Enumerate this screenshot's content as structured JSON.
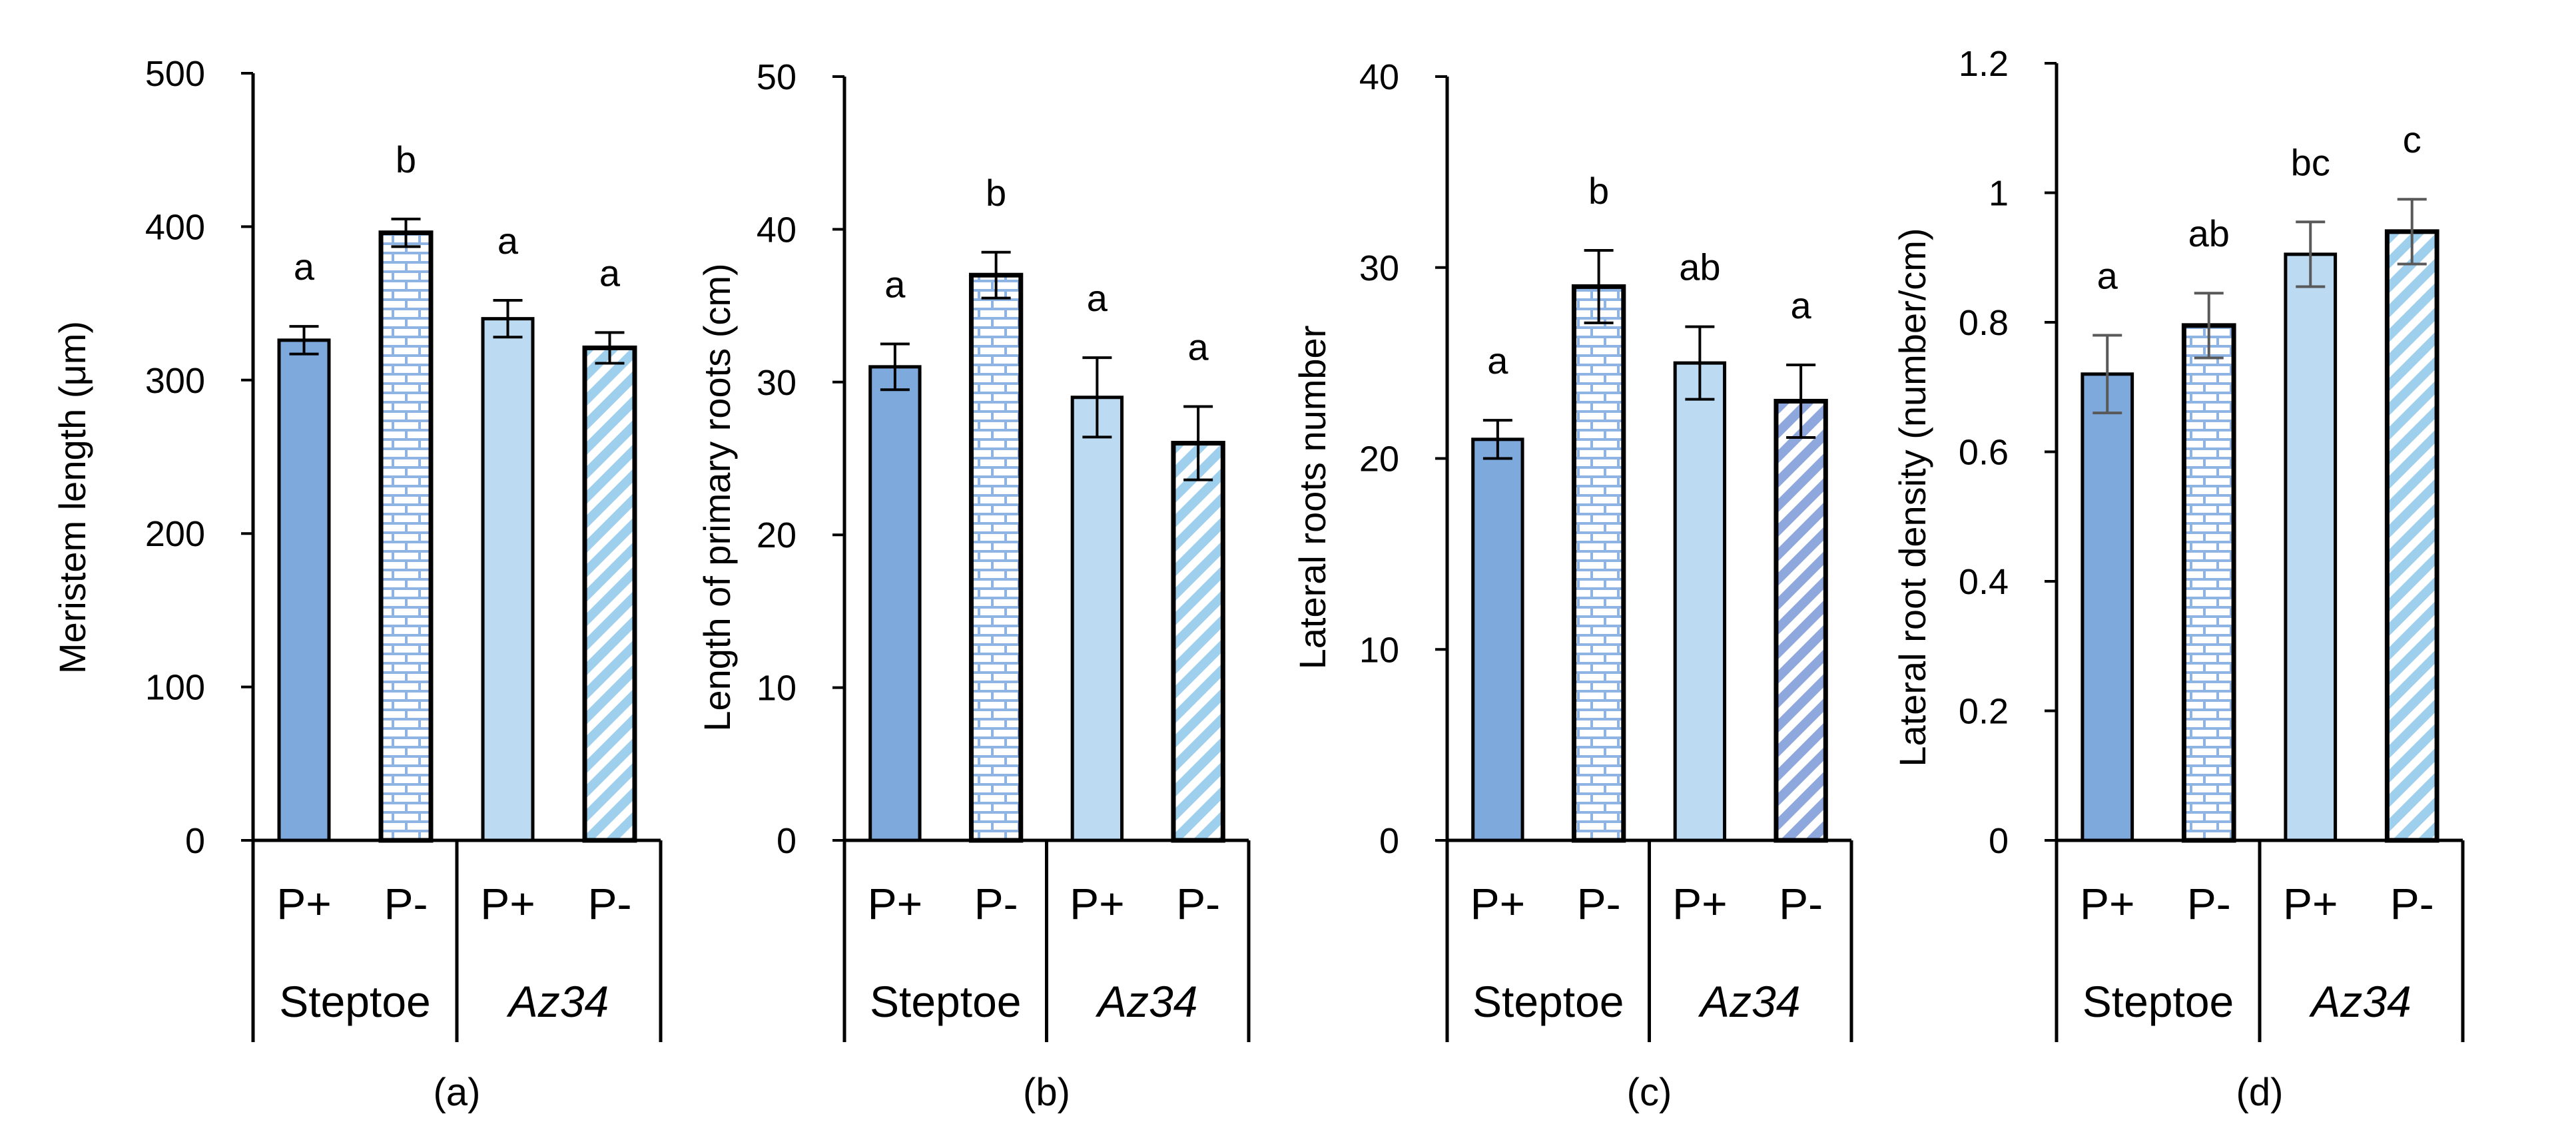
{
  "chart_data": [
    {
      "type": "bar",
      "panel_label": "(a)",
      "ylabel": "Meristem length  (μm)",
      "ylim": [
        0,
        500
      ],
      "yticks": [
        0,
        100,
        200,
        300,
        400,
        500
      ],
      "categories": [
        "P+",
        "P-",
        "P+",
        "P-"
      ],
      "groups": [
        {
          "name": "Steptoe",
          "italic": false
        },
        {
          "name": "Az34",
          "italic": true
        }
      ],
      "values": [
        326,
        396,
        340,
        321
      ],
      "errors": [
        9,
        9,
        12,
        10
      ],
      "letters": [
        "a",
        "b",
        "a",
        "a"
      ]
    },
    {
      "type": "bar",
      "panel_label": "(b)",
      "ylabel": "Length of primary roots (cm)",
      "ylim": [
        0,
        50
      ],
      "yticks": [
        0,
        10,
        20,
        30,
        40,
        50
      ],
      "categories": [
        "P+",
        "P-",
        "P+",
        "P-"
      ],
      "groups": [
        {
          "name": "Steptoe",
          "italic": false
        },
        {
          "name": "Az34",
          "italic": true
        }
      ],
      "values": [
        31,
        37,
        29,
        26
      ],
      "errors": [
        1.5,
        1.5,
        2.6,
        2.4
      ],
      "letters": [
        "a",
        "b",
        "a",
        "a"
      ]
    },
    {
      "type": "bar",
      "panel_label": "(c)",
      "ylabel": "Lateral roots number",
      "ylim": [
        0,
        40
      ],
      "yticks": [
        0,
        10,
        20,
        30,
        40
      ],
      "categories": [
        "P+",
        "P-",
        "P+",
        "P-"
      ],
      "groups": [
        {
          "name": "Steptoe",
          "italic": false
        },
        {
          "name": "Az34",
          "italic": true
        }
      ],
      "values": [
        21,
        29,
        25,
        23
      ],
      "errors": [
        1,
        1.9,
        1.9,
        1.9
      ],
      "letters": [
        "a",
        "b",
        "ab",
        "a"
      ]
    },
    {
      "type": "bar",
      "panel_label": "(d)",
      "ylabel": "Lateral root density (number/cm)",
      "ylim": [
        0,
        1.2
      ],
      "yticks": [
        0,
        0.2,
        0.4,
        0.6,
        0.8,
        1,
        1.2
      ],
      "categories": [
        "P+",
        "P-",
        "P+",
        "P-"
      ],
      "groups": [
        {
          "name": "Steptoe",
          "italic": false
        },
        {
          "name": "Az34",
          "italic": true
        }
      ],
      "values": [
        0.72,
        0.795,
        0.905,
        0.94
      ],
      "errors": [
        0.06,
        0.05,
        0.05,
        0.05
      ],
      "letters": [
        "a",
        "ab",
        "bc",
        "c"
      ]
    }
  ],
  "colors": {
    "bar_dark": "#7ea9dc",
    "bar_light": "#bcdaf2",
    "pattern_brick": "#8eb4e3",
    "pattern_stripe": "#9ed0ee",
    "pattern_stripe_c": "#8ea8de",
    "axis": "#000000",
    "error": "#000000",
    "error_d": "#595959"
  }
}
